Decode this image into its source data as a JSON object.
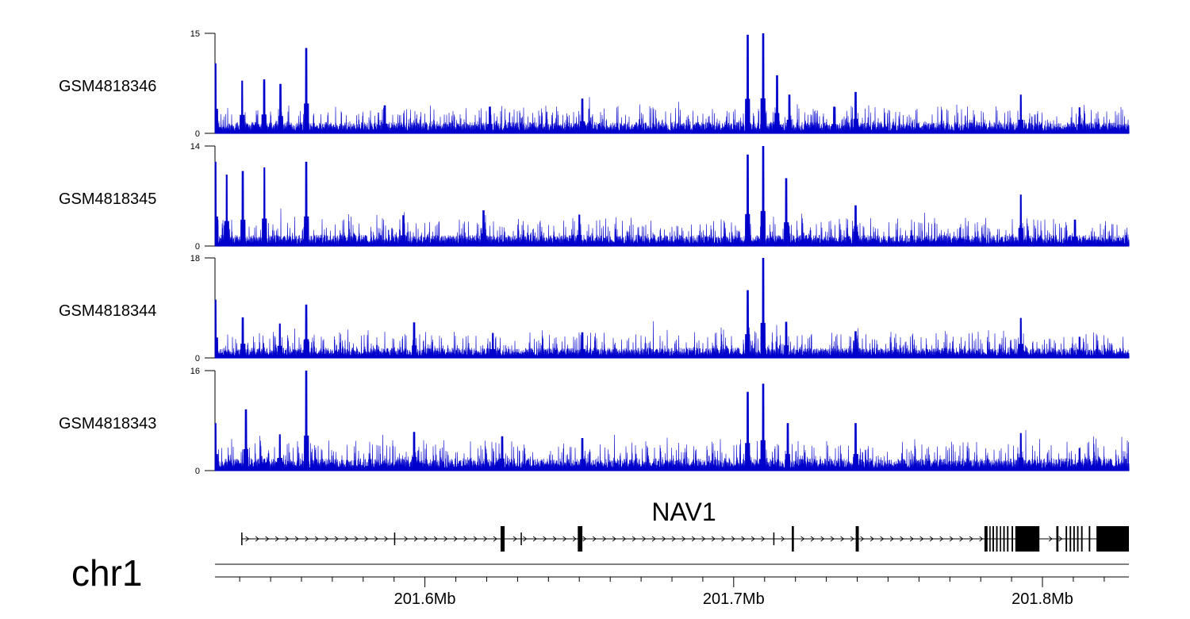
{
  "chart_data": {
    "type": "area",
    "chromosome": "chr1",
    "region_mb": [
      201.532,
      201.828
    ],
    "signal_color": "#0000cc",
    "x_ticks": [
      "201.6Mb",
      "201.7Mb",
      "201.8Mb"
    ],
    "x_tick_values_mb": [
      201.6,
      201.7,
      201.8
    ],
    "tracks": [
      {
        "name": "GSM4818346",
        "ylim": [
          0,
          15
        ],
        "peaks": [
          [
            201.5322,
            10.5
          ],
          [
            201.5408,
            7.9
          ],
          [
            201.5479,
            8.1
          ],
          [
            201.5532,
            7.4
          ],
          [
            201.5616,
            12.8
          ],
          [
            201.587,
            4.2
          ],
          [
            201.621,
            4.0
          ],
          [
            201.651,
            5.2
          ],
          [
            201.7045,
            14.8
          ],
          [
            201.7095,
            15.0
          ],
          [
            201.714,
            8.7
          ],
          [
            201.718,
            5.8
          ],
          [
            201.7325,
            4.0
          ],
          [
            201.7395,
            6.2
          ],
          [
            201.793,
            5.8
          ],
          [
            201.812,
            3.9
          ]
        ],
        "baseline": 1.3,
        "noise": 2.7
      },
      {
        "name": "GSM4818345",
        "ylim": [
          0,
          14
        ],
        "peaks": [
          [
            201.5322,
            11.8
          ],
          [
            201.5358,
            10.0
          ],
          [
            201.541,
            10.5
          ],
          [
            201.548,
            11.0
          ],
          [
            201.5616,
            11.8
          ],
          [
            201.593,
            4.3
          ],
          [
            201.619,
            5.0
          ],
          [
            201.65,
            4.4
          ],
          [
            201.7045,
            12.8
          ],
          [
            201.7095,
            14.0
          ],
          [
            201.717,
            9.5
          ],
          [
            201.7395,
            5.7
          ],
          [
            201.793,
            7.2
          ],
          [
            201.8105,
            3.7
          ]
        ],
        "baseline": 1.2,
        "noise": 2.6
      },
      {
        "name": "GSM4818344",
        "ylim": [
          0,
          18
        ],
        "peaks": [
          [
            201.5322,
            10.5
          ],
          [
            201.541,
            7.3
          ],
          [
            201.553,
            6.2
          ],
          [
            201.5616,
            9.6
          ],
          [
            201.5965,
            6.4
          ],
          [
            201.622,
            4.5
          ],
          [
            201.651,
            4.6
          ],
          [
            201.7045,
            12.2
          ],
          [
            201.7095,
            18.0
          ],
          [
            201.717,
            6.5
          ],
          [
            201.7395,
            4.8
          ],
          [
            201.793,
            7.2
          ],
          [
            201.812,
            3.8
          ]
        ],
        "baseline": 1.4,
        "noise": 3.3
      },
      {
        "name": "GSM4818343",
        "ylim": [
          0,
          16
        ],
        "peaks": [
          [
            201.5322,
            7.6
          ],
          [
            201.542,
            9.8
          ],
          [
            201.553,
            5.8
          ],
          [
            201.5616,
            16.0
          ],
          [
            201.5965,
            6.2
          ],
          [
            201.625,
            5.5
          ],
          [
            201.651,
            5.2
          ],
          [
            201.7045,
            12.6
          ],
          [
            201.7095,
            13.9
          ],
          [
            201.7175,
            7.6
          ],
          [
            201.7395,
            7.6
          ],
          [
            201.793,
            6.0
          ],
          [
            201.812,
            3.6
          ]
        ],
        "baseline": 1.5,
        "noise": 3.2
      }
    ],
    "gene": {
      "name": "NAV1",
      "strand": "+",
      "start": 201.5405,
      "end": 201.828,
      "exons": [
        [
          201.5405,
          201.5408
        ],
        [
          201.59,
          201.5903
        ],
        [
          201.6245,
          201.6258
        ],
        [
          201.631,
          201.6313
        ],
        [
          201.6495,
          201.651
        ],
        [
          201.7128,
          201.7131
        ],
        [
          201.7188,
          201.7195
        ],
        [
          201.7395,
          201.7405
        ],
        [
          201.7812,
          201.7822
        ],
        [
          201.7828,
          201.7832
        ],
        [
          201.7838,
          201.7843
        ],
        [
          201.785,
          201.7855
        ],
        [
          201.7862,
          201.7866
        ],
        [
          201.7873,
          201.7878
        ],
        [
          201.7885,
          201.789
        ],
        [
          201.79,
          201.7905
        ],
        [
          201.7912,
          201.799
        ],
        [
          201.8045,
          201.8052
        ],
        [
          201.8075,
          201.808
        ],
        [
          201.8088,
          201.8093
        ],
        [
          201.81,
          201.8105
        ],
        [
          201.8112,
          201.8117
        ],
        [
          201.8125,
          201.813
        ],
        [
          201.815,
          201.8155
        ],
        [
          201.8175,
          201.828
        ]
      ]
    }
  }
}
